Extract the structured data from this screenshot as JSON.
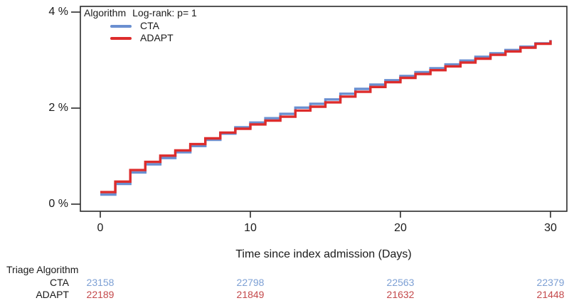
{
  "figure": {
    "legend": {
      "title": "Algorithm",
      "logrank": "Log-rank: p= 1"
    }
  },
  "chart_data": {
    "type": "line",
    "subtype": "step-post",
    "title": "",
    "xlabel": "Time since index admission (Days)",
    "ylabel": "",
    "xlim": [
      0,
      30
    ],
    "ylim": [
      0,
      4
    ],
    "grid": false,
    "legend_position": "top-left",
    "xticks": [
      0,
      10,
      20,
      30
    ],
    "xtick_labels": [
      "0",
      "10",
      "20",
      "30"
    ],
    "yticks": [
      0,
      2,
      4
    ],
    "ytick_labels": [
      "0 %",
      "2 %",
      "4 %"
    ],
    "x": [
      0,
      1,
      2,
      3,
      4,
      5,
      6,
      7,
      8,
      9,
      10,
      11,
      12,
      13,
      14,
      15,
      16,
      17,
      18,
      19,
      20,
      21,
      22,
      23,
      24,
      25,
      26,
      27,
      28,
      29,
      30
    ],
    "series": [
      {
        "name": "CTA",
        "color": "#6a8fd0",
        "values": [
          0.2,
          0.42,
          0.66,
          0.83,
          0.96,
          1.08,
          1.21,
          1.34,
          1.47,
          1.6,
          1.7,
          1.79,
          1.88,
          2.01,
          2.09,
          2.18,
          2.3,
          2.4,
          2.49,
          2.58,
          2.67,
          2.75,
          2.83,
          2.91,
          2.99,
          3.07,
          3.14,
          3.21,
          3.28,
          3.35,
          3.42
        ]
      },
      {
        "name": "ADAPT",
        "color": "#dd2c2c",
        "values": [
          0.25,
          0.47,
          0.71,
          0.88,
          1.01,
          1.12,
          1.25,
          1.37,
          1.49,
          1.57,
          1.66,
          1.74,
          1.82,
          1.95,
          2.03,
          2.12,
          2.24,
          2.34,
          2.44,
          2.54,
          2.63,
          2.71,
          2.79,
          2.87,
          2.95,
          3.03,
          3.11,
          3.18,
          3.26,
          3.34,
          3.41
        ]
      }
    ]
  },
  "risk_table": {
    "title": "Triage Algorithm",
    "columns": [
      "0",
      "10",
      "20",
      "30"
    ],
    "rows": [
      {
        "label": "CTA",
        "color": "#7da0d4",
        "counts": [
          "23158",
          "22798",
          "22563",
          "22379"
        ]
      },
      {
        "label": "ADAPT",
        "color": "#c4494b",
        "counts": [
          "22189",
          "21849",
          "21632",
          "21448"
        ]
      }
    ]
  }
}
